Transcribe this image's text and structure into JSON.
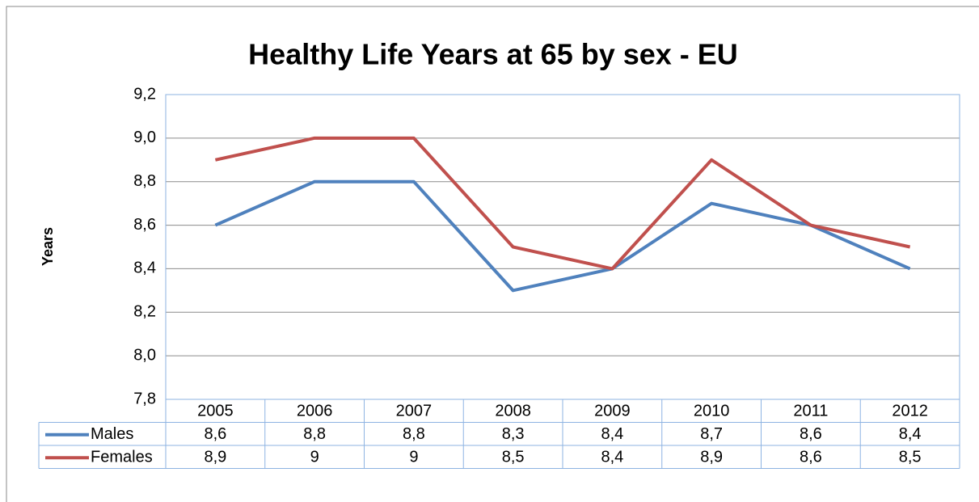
{
  "chart_data": {
    "type": "line",
    "title": "Healthy Life Years at 65 by sex - EU",
    "ylabel": "Years",
    "categories": [
      "2005",
      "2006",
      "2007",
      "2008",
      "2009",
      "2010",
      "2011",
      "2012"
    ],
    "series": [
      {
        "name": "Males",
        "color": "#4f81bd",
        "values": [
          8.6,
          8.8,
          8.8,
          8.3,
          8.4,
          8.7,
          8.6,
          8.4
        ],
        "value_labels": [
          "8,6",
          "8,8",
          "8,8",
          "8,3",
          "8,4",
          "8,7",
          "8,6",
          "8,4"
        ]
      },
      {
        "name": "Females",
        "color": "#c0504d",
        "values": [
          8.9,
          9,
          9,
          8.5,
          8.4,
          8.9,
          8.6,
          8.5
        ],
        "value_labels": [
          "8,9",
          "9",
          "9",
          "8,5",
          "8,4",
          "8,9",
          "8,6",
          "8,5"
        ]
      }
    ],
    "ylim": [
      7.8,
      9.2
    ],
    "yticks": [
      {
        "value": 7.8,
        "label": "7,8"
      },
      {
        "value": 8.0,
        "label": "8,0"
      },
      {
        "value": 8.2,
        "label": "8,2"
      },
      {
        "value": 8.4,
        "label": "8,4"
      },
      {
        "value": 8.6,
        "label": "8,6"
      },
      {
        "value": 8.8,
        "label": "8,8"
      },
      {
        "value": 9.0,
        "label": "9,0"
      },
      {
        "value": 9.2,
        "label": "9,2"
      }
    ],
    "grid": true
  }
}
